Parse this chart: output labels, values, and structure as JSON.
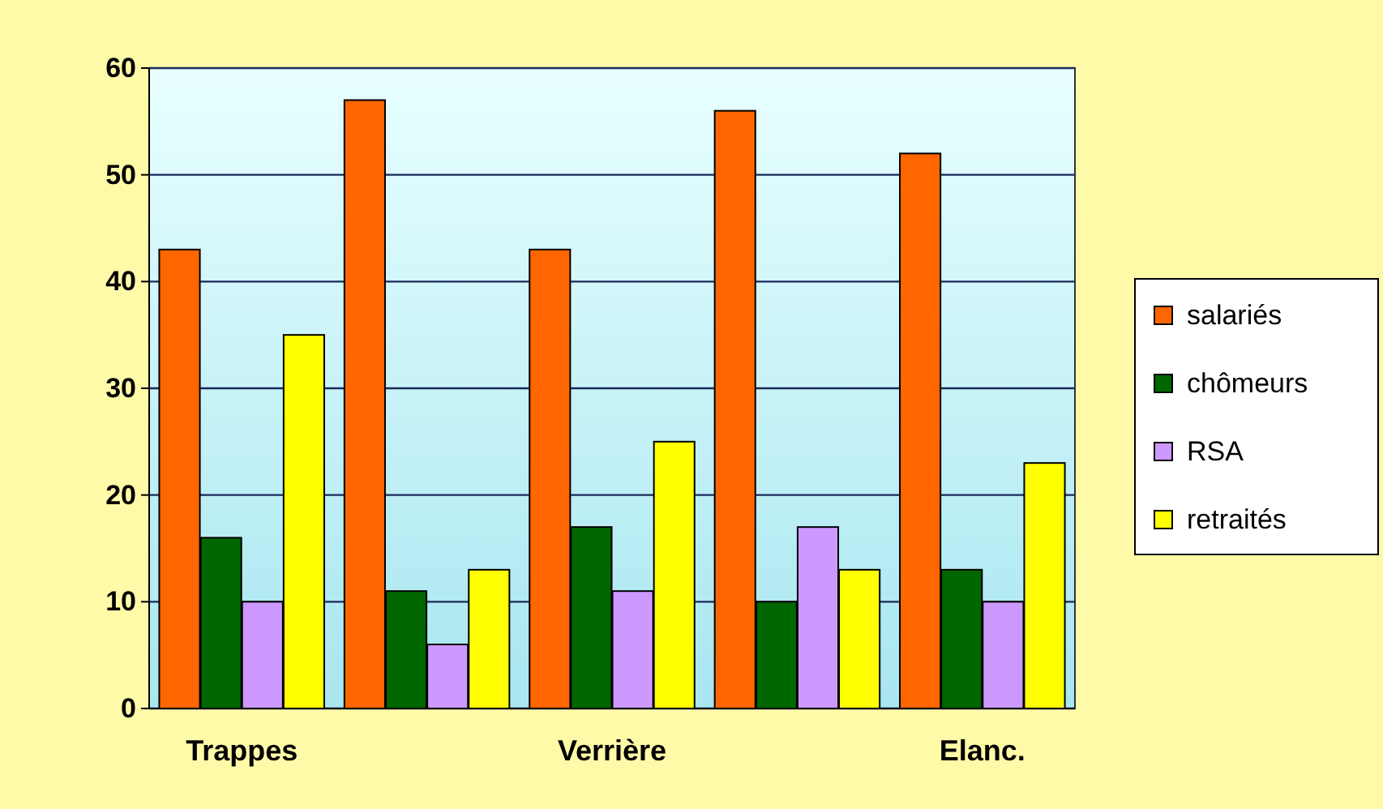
{
  "chart_data": {
    "type": "bar",
    "categories": [
      "Trappes",
      null,
      "Verrière",
      null,
      "Elanc."
    ],
    "series": [
      {
        "name": "salariés",
        "color": "#ff6600",
        "values": [
          43,
          57,
          43,
          56,
          52
        ]
      },
      {
        "name": "chômeurs",
        "color": "#006600",
        "values": [
          16,
          11,
          17,
          10,
          13
        ]
      },
      {
        "name": "RSA",
        "color": "#cc99ff",
        "values": [
          10,
          6,
          11,
          17,
          10
        ]
      },
      {
        "name": "retraités",
        "color": "#ffff00",
        "values": [
          35,
          13,
          25,
          13,
          23
        ]
      }
    ],
    "ylim": [
      0,
      60
    ],
    "yticks": [
      0,
      10,
      20,
      30,
      40,
      50,
      60
    ],
    "grid": "y",
    "legend": "right"
  }
}
